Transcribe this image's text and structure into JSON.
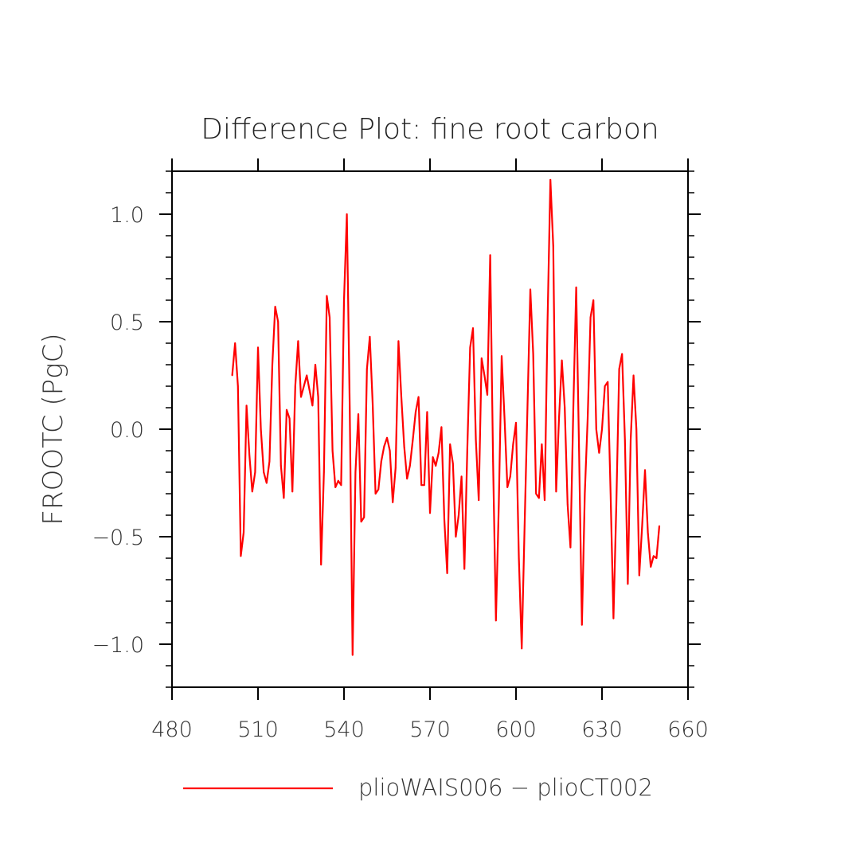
{
  "chart_data": {
    "type": "line",
    "title": "Difference Plot: fine root carbon",
    "xlabel": "",
    "ylabel": "FROOTC  (PgC)",
    "xlim": [
      480,
      660
    ],
    "ylim": [
      -1.2,
      1.2
    ],
    "xticks": [
      480,
      510,
      540,
      570,
      600,
      630,
      660
    ],
    "xtick_labels": [
      "480",
      "510",
      "540",
      "570",
      "600",
      "630",
      "660"
    ],
    "yticks": [
      -1.0,
      -0.5,
      0.0,
      0.5,
      1.0
    ],
    "ytick_labels": [
      "−1.0",
      "−0.5",
      "0.0",
      "0.5",
      "1.0"
    ],
    "grid": false,
    "legend_position": "bottom",
    "series": [
      {
        "name": "plioWAIS006 − plioCT002",
        "color": "#ff0000",
        "x": [
          501,
          502,
          503,
          504,
          505,
          506,
          507,
          508,
          509,
          510,
          511,
          512,
          513,
          514,
          515,
          516,
          517,
          518,
          519,
          520,
          521,
          522,
          523,
          524,
          525,
          526,
          527,
          528,
          529,
          530,
          531,
          532,
          533,
          534,
          535,
          536,
          537,
          538,
          539,
          540,
          541,
          542,
          543,
          544,
          545,
          546,
          547,
          548,
          549,
          550,
          551,
          552,
          553,
          554,
          555,
          556,
          557,
          558,
          559,
          560,
          561,
          562,
          563,
          564,
          565,
          566,
          567,
          568,
          569,
          570,
          571,
          572,
          573,
          574,
          575,
          576,
          577,
          578,
          579,
          580,
          581,
          582,
          583,
          584,
          585,
          586,
          587,
          588,
          589,
          590,
          591,
          592,
          593,
          594,
          595,
          596,
          597,
          598,
          599,
          600,
          601,
          602,
          603,
          604,
          605,
          606,
          607,
          608,
          609,
          610,
          611,
          612,
          613,
          614,
          615,
          616,
          617,
          618,
          619,
          620,
          621,
          622,
          623,
          624,
          625,
          626,
          627,
          628,
          629,
          630,
          631,
          632,
          633,
          634,
          635,
          636,
          637,
          638,
          639,
          640,
          641,
          642,
          643,
          644,
          645,
          646,
          647,
          648,
          649,
          650
        ],
        "values": [
          0.25,
          0.4,
          0.2,
          -0.59,
          -0.48,
          0.11,
          -0.12,
          -0.29,
          -0.2,
          0.38,
          0.0,
          -0.2,
          -0.25,
          -0.15,
          0.3,
          0.57,
          0.5,
          -0.17,
          -0.32,
          0.09,
          0.05,
          -0.29,
          0.2,
          0.41,
          0.15,
          0.2,
          0.25,
          0.18,
          0.11,
          0.3,
          0.15,
          -0.63,
          -0.2,
          0.62,
          0.52,
          -0.1,
          -0.27,
          -0.24,
          -0.26,
          0.6,
          1.0,
          0.1,
          -1.05,
          -0.2,
          0.07,
          -0.43,
          -0.41,
          0.28,
          0.43,
          0.12,
          -0.3,
          -0.28,
          -0.15,
          -0.08,
          -0.04,
          -0.1,
          -0.34,
          -0.18,
          0.41,
          0.15,
          -0.08,
          -0.23,
          -0.17,
          -0.05,
          0.08,
          0.15,
          -0.26,
          -0.26,
          0.08,
          -0.39,
          -0.13,
          -0.17,
          -0.11,
          0.01,
          -0.42,
          -0.67,
          -0.07,
          -0.16,
          -0.5,
          -0.4,
          -0.22,
          -0.65,
          -0.1,
          0.38,
          0.47,
          -0.05,
          -0.33,
          0.33,
          0.25,
          0.16,
          0.81,
          -0.15,
          -0.89,
          -0.35,
          0.34,
          0.05,
          -0.27,
          -0.22,
          -0.07,
          0.03,
          -0.6,
          -1.02,
          -0.45,
          0.1,
          0.65,
          0.35,
          -0.3,
          -0.32,
          -0.07,
          -0.33,
          0.5,
          1.16,
          0.85,
          -0.29,
          0.05,
          0.32,
          0.1,
          -0.35,
          -0.55,
          0.1,
          0.66,
          -0.1,
          -0.91,
          -0.3,
          0.05,
          0.52,
          0.6,
          0.0,
          -0.11,
          0.0,
          0.2,
          0.22,
          -0.3,
          -0.88,
          -0.35,
          0.28,
          0.35,
          -0.05,
          -0.72,
          -0.05,
          0.25,
          0.0,
          -0.68,
          -0.45,
          -0.19,
          -0.48,
          -0.64,
          -0.59,
          -0.6,
          -0.45
        ]
      }
    ]
  }
}
